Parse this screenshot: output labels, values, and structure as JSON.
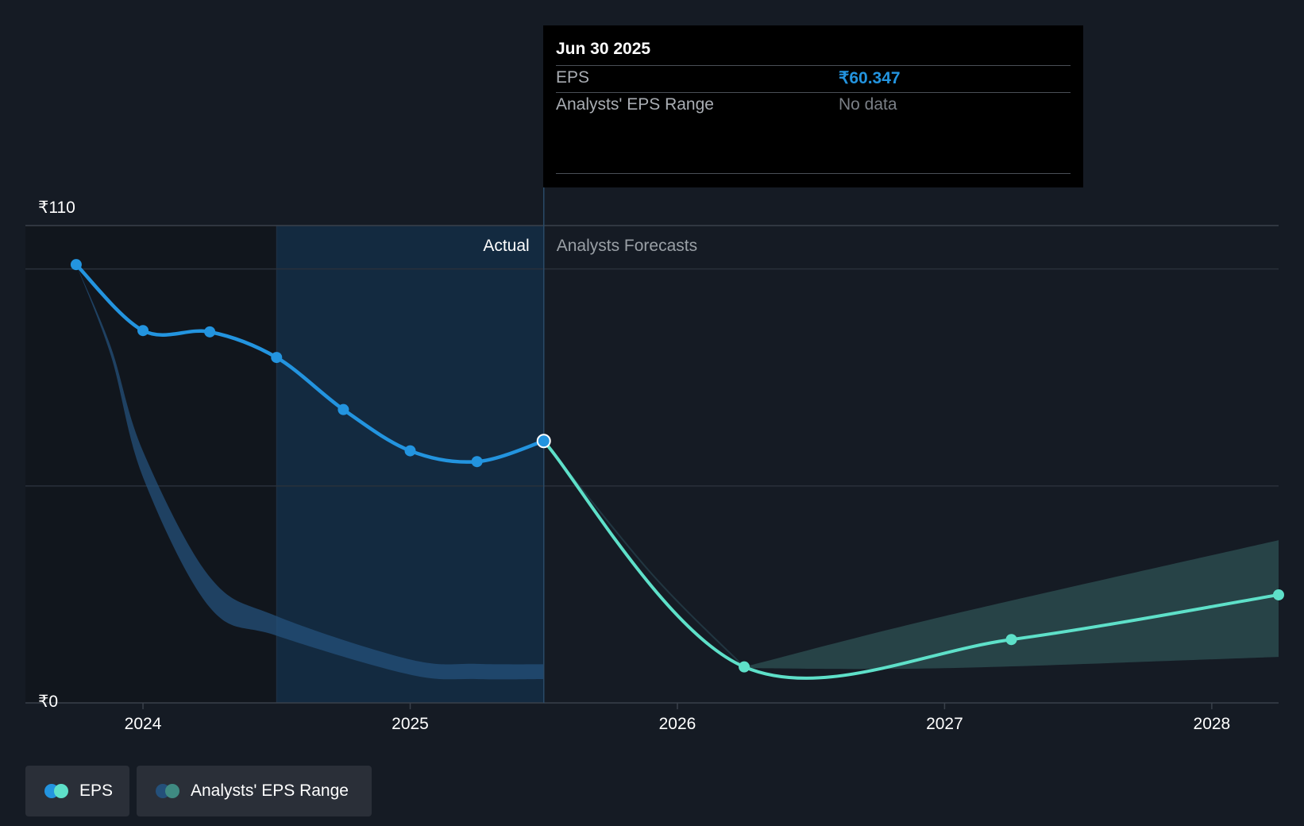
{
  "colors": {
    "background": "#151b24",
    "eps_actual": "#2394df",
    "eps_forecast": "#5ee0c9",
    "range_actual": "#24507a",
    "range_forecast": "#2a4a4e",
    "actual_shade": "#132a40",
    "tooltip_eps_value": "#2394df",
    "tooltip_nodata": "#7a7f86"
  },
  "tooltip": {
    "date": "Jun 30 2025",
    "eps_label": "EPS",
    "eps_value": "₹60.347",
    "range_label": "Analysts' EPS Range",
    "range_value": "No data"
  },
  "sections": {
    "actual": "Actual",
    "forecast": "Analysts Forecasts"
  },
  "legend": {
    "eps": "EPS",
    "range": "Analysts' EPS Range"
  },
  "chart_data": {
    "type": "line",
    "title": "",
    "xlabel": "",
    "ylabel": "",
    "ylim": [
      0,
      110
    ],
    "y_tick_labels": [
      {
        "value": 110,
        "label": "₹110"
      },
      {
        "value": 0,
        "label": "₹0"
      }
    ],
    "y_gridlines": [
      100,
      50
    ],
    "xlim": [
      2023.56,
      2028.25
    ],
    "x_ticks": [
      2024,
      2025,
      2026,
      2027,
      2028
    ],
    "x_tick_labels": [
      "2024",
      "2025",
      "2026",
      "2027",
      "2028"
    ],
    "past_shade_start": 2024.5,
    "split_x": 2025.5,
    "series": [
      {
        "name": "EPS (actual)",
        "points": [
          [
            2023.75,
            101.0
          ],
          [
            2024.0,
            85.8
          ],
          [
            2024.25,
            85.5
          ],
          [
            2024.5,
            79.6
          ],
          [
            2024.75,
            67.6
          ],
          [
            2025.0,
            58.1
          ],
          [
            2025.25,
            55.6
          ],
          [
            2025.5,
            60.347
          ]
        ]
      },
      {
        "name": "EPS (forecast)",
        "points": [
          [
            2025.5,
            60.347
          ],
          [
            2026.25,
            8.3
          ],
          [
            2027.25,
            14.6
          ],
          [
            2028.25,
            24.9
          ]
        ]
      }
    ],
    "range_series": [
      {
        "name": "Analysts' EPS Range (actual)",
        "upper": [
          [
            2023.75,
            101.0
          ],
          [
            2023.88,
            82.0
          ],
          [
            2024.0,
            58.0
          ],
          [
            2024.25,
            29.0
          ],
          [
            2024.5,
            20.0
          ],
          [
            2025.0,
            10.0
          ],
          [
            2025.25,
            9.0
          ],
          [
            2025.5,
            8.9
          ]
        ],
        "lower": [
          [
            2023.75,
            101.0
          ],
          [
            2023.88,
            80.0
          ],
          [
            2024.0,
            52.0
          ],
          [
            2024.25,
            22.0
          ],
          [
            2024.5,
            15.5
          ],
          [
            2025.0,
            6.5
          ],
          [
            2025.25,
            5.5
          ],
          [
            2025.5,
            5.5
          ]
        ]
      },
      {
        "name": "Analysts' EPS Range (forecast)",
        "upper": [
          [
            2026.25,
            8.3
          ],
          [
            2027.0,
            20.0
          ],
          [
            2028.25,
            37.5
          ]
        ],
        "lower": [
          [
            2026.25,
            8.0
          ],
          [
            2027.0,
            8.0
          ],
          [
            2028.25,
            10.6
          ]
        ]
      }
    ]
  }
}
